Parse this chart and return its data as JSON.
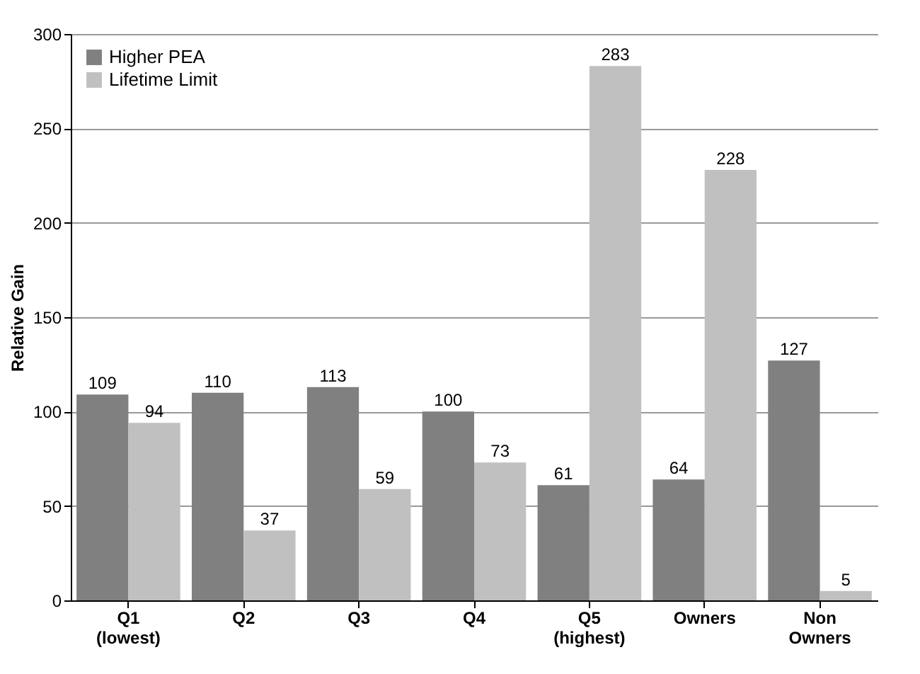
{
  "chart_data": {
    "type": "bar",
    "ylabel": "Relative Gain",
    "categories": [
      "Q1 (lowest)",
      "Q2",
      "Q3",
      "Q4",
      "Q5 (highest)",
      "Owners",
      "Non Owners"
    ],
    "series": [
      {
        "name": "Higher PEA",
        "color": "#808080",
        "values": [
          109,
          110,
          113,
          100,
          61,
          64,
          127
        ]
      },
      {
        "name": "Lifetime Limit",
        "color": "#c0c0c0",
        "values": [
          94,
          37,
          59,
          73,
          283,
          228,
          5
        ]
      }
    ],
    "ylim": [
      0,
      300
    ],
    "yticks": [
      0,
      50,
      100,
      150,
      200,
      250,
      300
    ],
    "grid": "y",
    "legend": "top left",
    "data_labels": true
  }
}
